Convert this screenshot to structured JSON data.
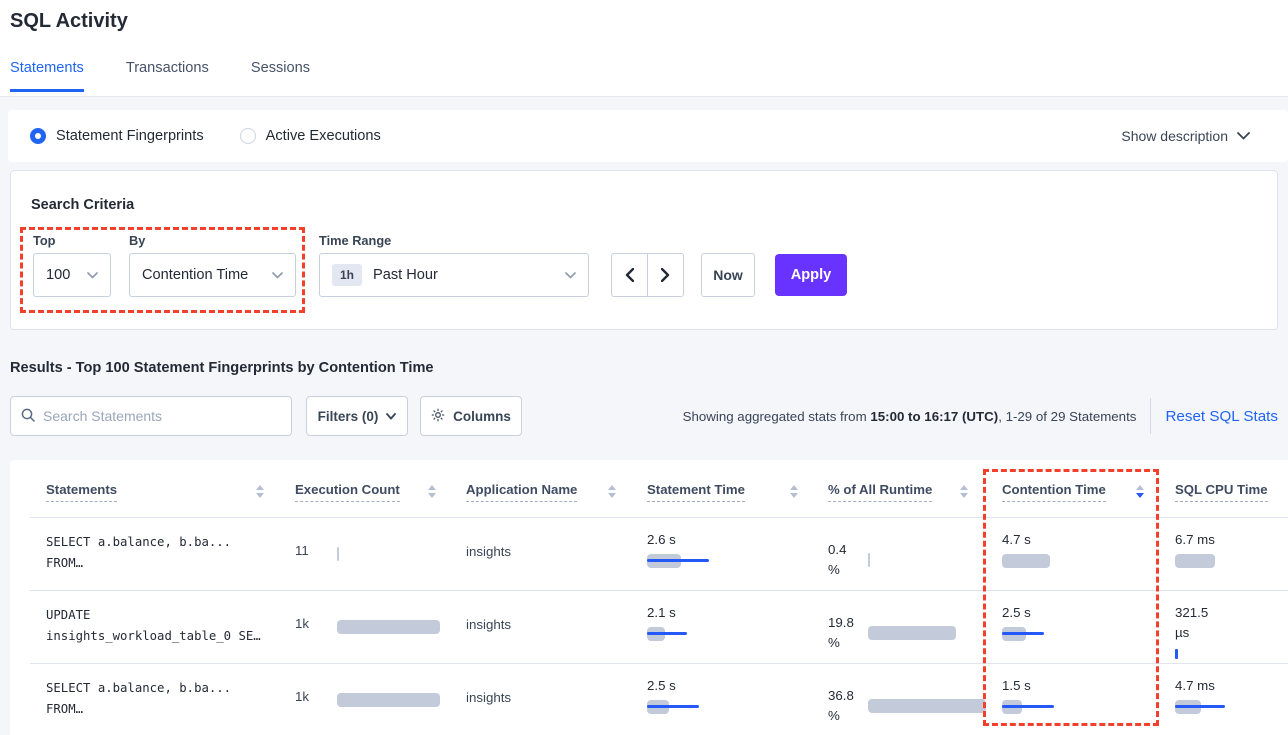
{
  "app": {
    "title": "SQL Activity"
  },
  "tabs": [
    {
      "label": "Statements",
      "active": true
    },
    {
      "label": "Transactions",
      "active": false
    },
    {
      "label": "Sessions",
      "active": false
    }
  ],
  "view_toggle": {
    "statement_fingerprints": "Statement Fingerprints",
    "active_executions": "Active Executions",
    "selected": "Statement Fingerprints",
    "show_description": "Show description"
  },
  "search_criteria": {
    "heading": "Search Criteria",
    "top_label": "Top",
    "top_value": "100",
    "by_label": "By",
    "by_value": "Contention Time",
    "time_range_label": "Time Range",
    "time_badge": "1h",
    "time_value": "Past Hour",
    "now_label": "Now",
    "apply_label": "Apply"
  },
  "results": {
    "heading": "Results - Top 100 Statement Fingerprints by Contention Time",
    "search_placeholder": "Search Statements",
    "filters_label": "Filters (0)",
    "columns_label": "Columns",
    "showing_prefix": "Showing aggregated stats from ",
    "showing_bold": "15:00 to 16:17 (UTC)",
    "showing_suffix": ", 1-29 of 29 Statements",
    "reset_label": "Reset SQL Stats"
  },
  "table": {
    "columns": [
      {
        "label": "Statements",
        "sorted": false
      },
      {
        "label": "Execution Count",
        "sorted": false
      },
      {
        "label": "Application Name",
        "sorted": false
      },
      {
        "label": "Statement Time",
        "sorted": false
      },
      {
        "label": "% of All Runtime",
        "sorted": false
      },
      {
        "label": "Contention Time",
        "sorted": "desc"
      },
      {
        "label": "SQL CPU Time",
        "sorted": false
      }
    ],
    "rows": [
      {
        "statement_line1": "SELECT a.balance, b.ba...",
        "statement_line2": "FROM…",
        "execution_count": "11",
        "application_name": "insights",
        "statement_time": "2.6 s",
        "pct_runtime": "0.4 %",
        "contention_time": "4.7 s",
        "sql_cpu_time": "6.7 ms",
        "bars": {
          "exec": [
            2,
            0
          ],
          "st": [
            34,
            62
          ],
          "pct": [
            2,
            0
          ],
          "ct": [
            48,
            0
          ],
          "cpu": [
            40,
            0
          ]
        }
      },
      {
        "statement_line1": "UPDATE",
        "statement_line2": "insights_workload_table_0 SE…",
        "execution_count": "1k",
        "application_name": "insights",
        "statement_time": "2.1 s",
        "pct_runtime": "19.8 %",
        "contention_time": "2.5 s",
        "sql_cpu_time": "321.5 µs",
        "bars": {
          "exec": [
            103,
            0
          ],
          "st": [
            18,
            40
          ],
          "pct": [
            88,
            0
          ],
          "ct": [
            24,
            42
          ],
          "cpu": [
            0,
            0,
            "blueTick"
          ]
        }
      },
      {
        "statement_line1": "SELECT a.balance, b.ba...",
        "statement_line2": "FROM…",
        "execution_count": "1k",
        "application_name": "insights",
        "statement_time": "2.5 s",
        "pct_runtime": "36.8 %",
        "contention_time": "1.5 s",
        "sql_cpu_time": "4.7 ms",
        "bars": {
          "exec": [
            103,
            0
          ],
          "st": [
            22,
            52
          ],
          "pct": [
            118,
            0
          ],
          "ct": [
            20,
            52
          ],
          "cpu": [
            26,
            50
          ]
        }
      }
    ]
  },
  "colors": {
    "accent_blue": "#2065f2",
    "bar_blue": "#2458f7",
    "bar_gray": "#c3cada",
    "apply_purple": "#6933ff",
    "highlight_red": "#f2402d",
    "page_bg": "#f4f6fa"
  }
}
